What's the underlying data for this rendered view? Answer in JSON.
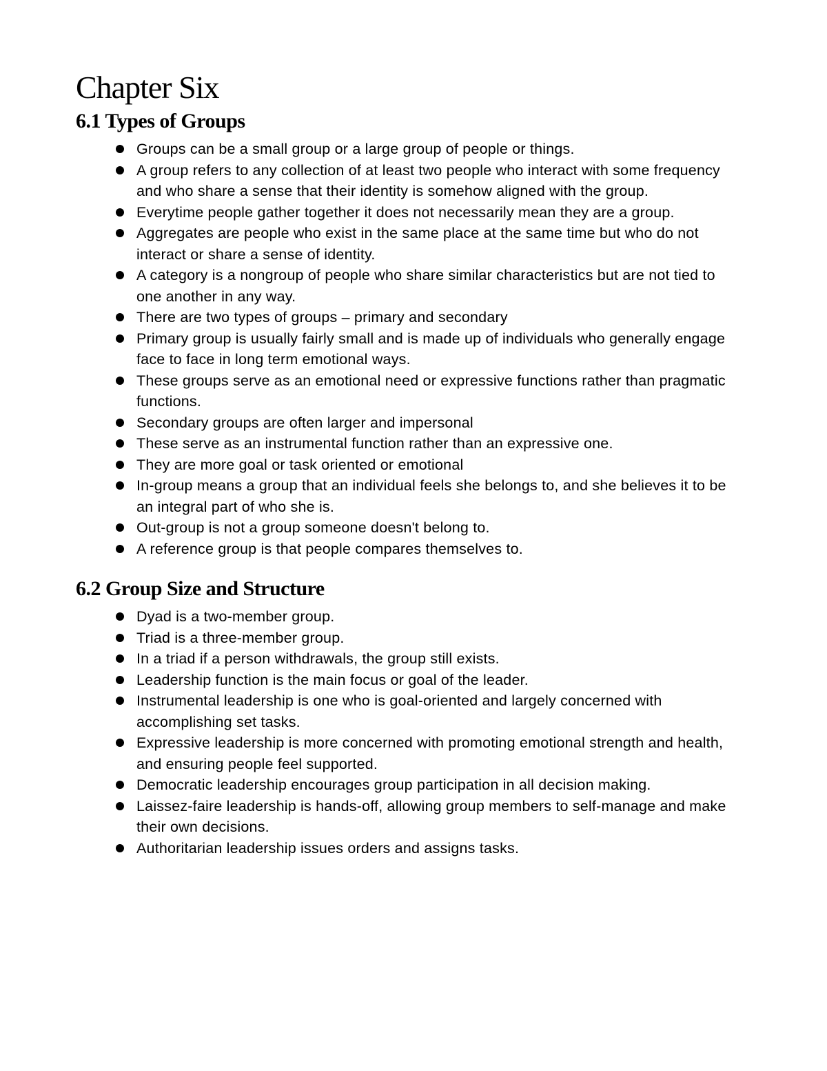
{
  "chapter": {
    "title": "Chapter Six"
  },
  "sections": [
    {
      "title": "6.1 Types of Groups",
      "bullets": [
        "Groups can be a small group or a large group of people or things.",
        "A group refers to any collection of at least two people who interact with some frequency and who share a sense that their identity is somehow aligned with the group.",
        "Everytime people gather together it does not necessarily mean they are a group.",
        "Aggregates are people who exist in the same place at the same time but who do not interact or share a sense of identity.",
        "A category is a nongroup of people who share similar characteristics but are not tied to one another in any way.",
        "There are two types of groups – primary and secondary",
        "Primary group is usually fairly small and is made up of individuals who generally engage face to face in long term emotional ways.",
        "These groups serve as an emotional need or expressive functions rather than pragmatic functions.",
        "Secondary groups are often larger and impersonal",
        "These serve as an instrumental function rather than an expressive one.",
        "They are more goal or task oriented or emotional",
        "In-group means a group that an individual feels she belongs to, and she believes it to be an integral part of who she is.",
        "Out-group is not a group someone doesn't belong to.",
        "A reference group is that people compares themselves to."
      ]
    },
    {
      "title": "6.2 Group Size and Structure",
      "bullets": [
        "Dyad is a two-member group.",
        "Triad is a three-member group.",
        "In a triad if a person withdrawals, the group still exists.",
        "Leadership function is the main focus or goal of the leader.",
        "Instrumental leadership is one who is goal-oriented and largely concerned with accomplishing set tasks.",
        "Expressive leadership is more concerned with promoting emotional strength and health, and ensuring people feel supported.",
        "Democratic leadership encourages group participation in all decision making.",
        "Laissez-faire leadership is hands-off, allowing group members to self-manage and make their own decisions.",
        "Authoritarian leadership issues orders and assigns tasks."
      ]
    }
  ]
}
